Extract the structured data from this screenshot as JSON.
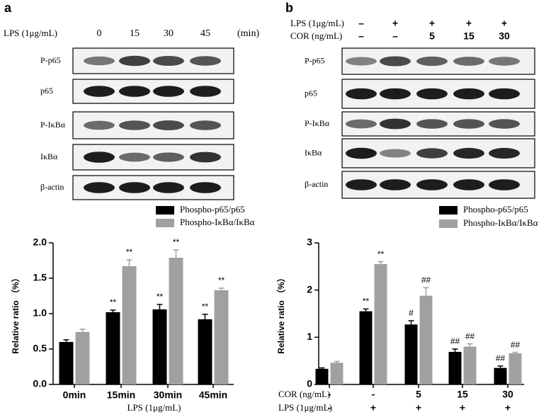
{
  "blots": [
    {
      "panel": "a",
      "treatment_rows": [
        {
          "label": "LPS (1μg/mL)",
          "lanes": [
            "0",
            "15",
            "30",
            "45"
          ],
          "unit": "(min)"
        }
      ],
      "bands": [
        "P-p65",
        "p65",
        "P-IκBα",
        "IκBα",
        "β-actin"
      ]
    },
    {
      "panel": "b",
      "treatment_rows": [
        {
          "label": "LPS (1μg/mL)",
          "lanes": [
            "–",
            "+",
            "+",
            "+",
            "+"
          ]
        },
        {
          "label": "COR (ng/mL)",
          "lanes": [
            "–",
            "–",
            "5",
            "15",
            "30"
          ]
        }
      ],
      "bands": [
        "P-p65",
        "p65",
        "P-IκBα",
        "IκBα",
        "β-actin"
      ]
    }
  ],
  "chart_data": [
    {
      "type": "bar",
      "ylabel": "Relative ratio （%）",
      "xlabel": "LPS (1μg/mL)",
      "categories": [
        "0min",
        "15min",
        "30min",
        "45min"
      ],
      "ylim": [
        0,
        2.0
      ],
      "yticks": [
        {
          "value": 0,
          "label": "0.0"
        },
        0.5,
        {
          "value": 1,
          "label": "1.0"
        },
        1.5,
        {
          "value": 2,
          "label": "2.0"
        }
      ],
      "series": [
        {
          "name": "Phospho-p65/p65",
          "color": "#000000",
          "values": [
            0.6,
            1.02,
            1.06,
            0.92
          ],
          "errors": [
            0.03,
            0.03,
            0.07,
            0.07
          ],
          "annotations": [
            null,
            "**",
            "**",
            "**"
          ]
        },
        {
          "name": "Phospho-IκBα/IκBα",
          "color": "#a0a0a0",
          "values": [
            0.74,
            1.67,
            1.79,
            1.33
          ],
          "errors": [
            0.04,
            0.09,
            0.11,
            0.03
          ],
          "annotations": [
            null,
            "**",
            "**",
            "**"
          ]
        }
      ]
    },
    {
      "type": "bar",
      "ylabel": "Relative ratio （%）",
      "category_rows": [
        {
          "label": "COR (ng/mL)",
          "values": [
            "-",
            "-",
            "5",
            "15",
            "30"
          ]
        },
        {
          "label": "LPS (1μg/mL)",
          "values": [
            "-",
            "+",
            "+",
            "+",
            "+"
          ]
        }
      ],
      "ylim": [
        0,
        3
      ],
      "yticks": [
        0,
        1,
        2,
        3
      ],
      "series": [
        {
          "name": "Phospho-p65/p65",
          "color": "#000000",
          "values": [
            0.33,
            1.55,
            1.27,
            0.69,
            0.35
          ],
          "errors": [
            0.02,
            0.05,
            0.08,
            0.06,
            0.04
          ],
          "annotations": [
            null,
            "**",
            "#",
            "##",
            "##"
          ]
        },
        {
          "name": "Phospho-IκBα/IκBα",
          "color": "#a0a0a0",
          "values": [
            0.46,
            2.55,
            1.88,
            0.8,
            0.66
          ],
          "errors": [
            0.03,
            0.05,
            0.17,
            0.06,
            0.02
          ],
          "annotations": [
            null,
            "**",
            "##",
            "##",
            "##"
          ]
        }
      ]
    }
  ]
}
